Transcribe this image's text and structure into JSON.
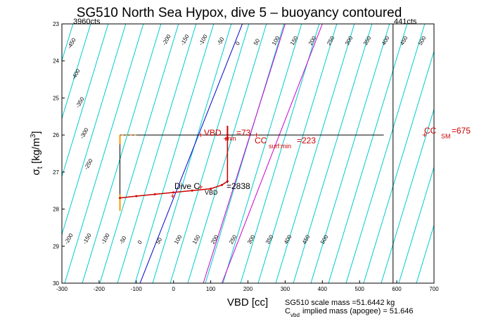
{
  "chart_data": {
    "type": "line",
    "title": "SG510 North Sea Hypox, dive 5 – buoyancy contoured",
    "xlabel": "VBD [cc]",
    "ylabel": "σt [kg/m³]",
    "xlim": [
      -300,
      700
    ],
    "ylim": [
      30,
      23
    ],
    "x_ticks": [
      -300,
      -200,
      -100,
      0,
      100,
      200,
      300,
      400,
      500,
      600,
      700
    ],
    "y_ticks": [
      23,
      24,
      25,
      26,
      27,
      28,
      29,
      30
    ],
    "corner_labels": {
      "left": "3960cts",
      "right": "441cts"
    },
    "contours": {
      "color": "#00cccc",
      "values_top_left": [
        "-450",
        "-400",
        "-350",
        "-300",
        "-250"
      ],
      "values_top": [
        "-200",
        "-150",
        "-100",
        "-50",
        "0",
        "50",
        "100",
        "150",
        "200",
        "250",
        "300",
        "350",
        "400",
        "450",
        "500"
      ],
      "values_bottom": [
        "-200",
        "-150",
        "-100",
        "-50",
        "0",
        "50",
        "100",
        "150",
        "200",
        "250",
        "300",
        "350",
        "400",
        "450",
        "500"
      ]
    },
    "reference_lines": [
      {
        "color": "#0000cc",
        "x_at_bottom": -90,
        "x_at_top": 185
      },
      {
        "color": "#cc00cc",
        "x_at_bottom": 80,
        "x_at_top": 300
      },
      {
        "color": "#cc00cc",
        "x_at_bottom": 130,
        "x_at_top": 400
      }
    ],
    "vertical_lines": [
      -144,
      590
    ],
    "horizontal_line": {
      "y": 26.0,
      "x_from": -144,
      "x_to": 565
    },
    "vbd_min_line": {
      "x": 145,
      "y_from": 26.0,
      "y_to": 27.3
    },
    "series": [
      {
        "color": "#cc0000",
        "x": [
          -144,
          -100,
          -50,
          0,
          50,
          100,
          130,
          145,
          145
        ],
        "y": [
          27.7,
          27.65,
          27.6,
          27.55,
          27.5,
          27.45,
          27.35,
          27.25,
          26.0
        ]
      }
    ],
    "annotations": {
      "vbd_min_label": "VBD",
      "vbd_min_sub": "min",
      "vbd_min_value": "=73",
      "cc_surf_label": "CC",
      "cc_surf_sub": "surf:min",
      "cc_surf_value": "=223",
      "cc_sm_label": "CC",
      "cc_sm_sub": "SM",
      "cc_sm_value": "=675",
      "dive_label": "Dive C",
      "dive_sub": "VBD",
      "dive_value": "=2838"
    },
    "footer": {
      "line1": "SG510 scale mass =51.6442 kg",
      "line2_label": "C",
      "line2_sub": "vbd",
      "line2_rest": " implied mass (apogee) = 51.646"
    }
  }
}
